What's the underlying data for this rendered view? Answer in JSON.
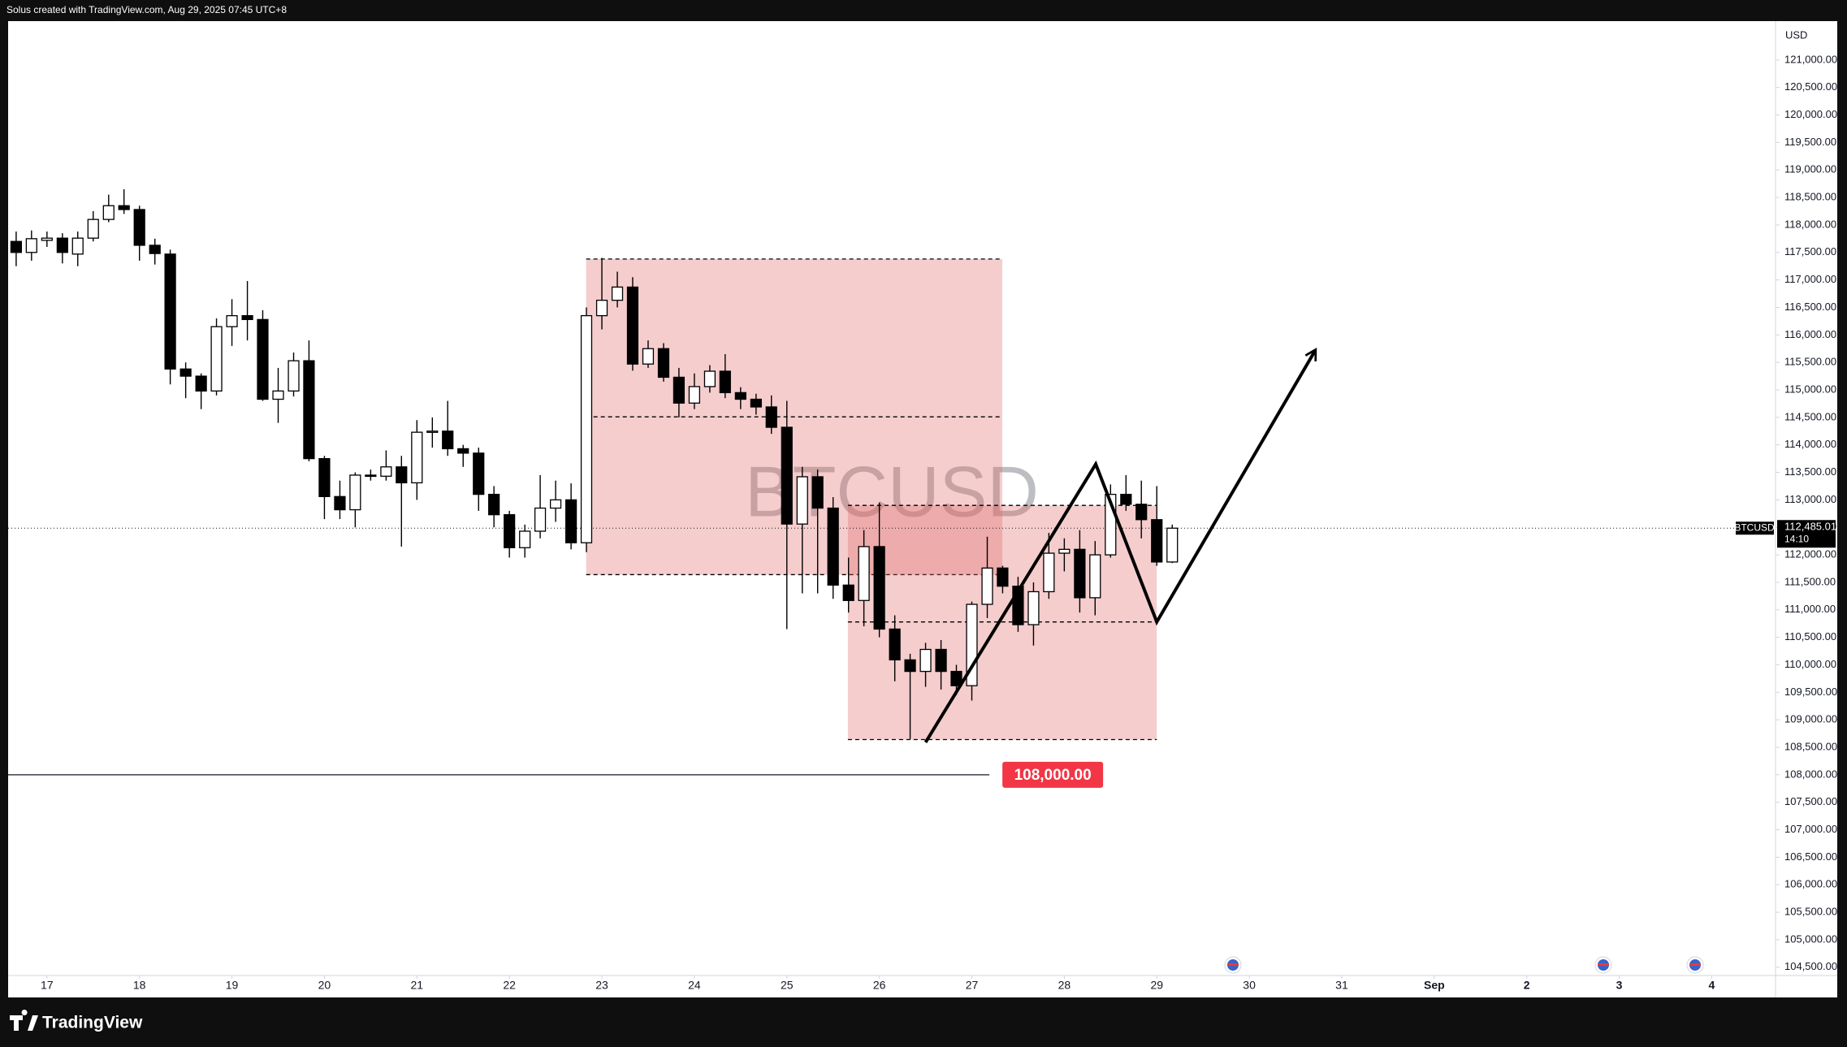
{
  "header": "Solus created with TradingView.com, Aug 29, 2025 07:45 UTC+8",
  "brand": "TradingView",
  "chart_data": {
    "type": "candlestick",
    "symbol": "BTCUSD",
    "currency": "USD",
    "colors": {
      "up": "#ffffff",
      "down": "#000000",
      "border": "#000000"
    },
    "x": [
      16.667,
      16.833,
      17,
      17.167,
      17.333,
      17.5,
      17.667,
      17.833,
      18,
      18.167,
      18.333,
      18.5,
      18.667,
      18.833,
      19,
      19.167,
      19.333,
      19.5,
      19.667,
      19.833,
      20,
      20.167,
      20.333,
      20.5,
      20.667,
      20.833,
      21,
      21.167,
      21.333,
      21.5,
      21.667,
      21.833,
      22,
      22.167,
      22.333,
      22.5,
      22.667,
      22.833,
      23,
      23.167,
      23.333,
      23.5,
      23.667,
      23.833,
      24,
      24.167,
      24.333,
      24.5,
      24.667,
      24.833,
      25,
      25.167,
      25.333,
      25.5,
      25.667,
      25.833,
      26,
      26.167,
      26.333,
      26.5,
      26.667,
      26.833,
      27,
      27.167,
      27.333,
      27.5,
      27.667,
      27.833,
      28,
      28.167,
      28.333,
      28.5,
      28.667,
      28.833,
      29,
      29.167
    ],
    "open": [
      117700,
      117500,
      117720,
      117760,
      117470,
      117760,
      118100,
      118350,
      118280,
      117630,
      117470,
      115380,
      115250,
      114980,
      116150,
      116350,
      116280,
      114830,
      114980,
      115530,
      113750,
      113060,
      112820,
      113450,
      113430,
      113600,
      113310,
      114230,
      114250,
      113930,
      113850,
      113100,
      112730,
      112130,
      112430,
      112850,
      113000,
      112220,
      116350,
      116630,
      116870,
      115470,
      115750,
      115230,
      114760,
      115060,
      115340,
      114950,
      114830,
      114690,
      114320,
      112560,
      113420,
      112850,
      111450,
      111170,
      112150,
      110650,
      110090,
      109880,
      110280,
      109880,
      109620,
      111100,
      111760,
      111430,
      110730,
      111330,
      112030,
      112100,
      111220,
      112000,
      113100,
      112920,
      112640,
      111870
    ],
    "high": [
      117880,
      117900,
      117880,
      117850,
      117880,
      118250,
      118550,
      118650,
      118350,
      117750,
      117550,
      115500,
      115300,
      116300,
      116650,
      116980,
      116450,
      115400,
      115680,
      115900,
      113800,
      113350,
      113500,
      113550,
      113900,
      113800,
      114450,
      114500,
      114800,
      114000,
      113950,
      113250,
      112800,
      112550,
      113450,
      113350,
      113300,
      116500,
      117400,
      117150,
      117050,
      115900,
      115850,
      115400,
      115300,
      115450,
      115650,
      115050,
      114930,
      114900,
      114800,
      113600,
      113550,
      113050,
      111950,
      112450,
      112950,
      110900,
      110200,
      110400,
      110450,
      110000,
      111150,
      112330,
      111800,
      111600,
      111500,
      112400,
      112300,
      112450,
      112250,
      113280,
      113450,
      113350,
      113250,
      112550
    ],
    "low": [
      117250,
      117350,
      117600,
      117300,
      117250,
      117700,
      118050,
      118200,
      117350,
      117280,
      115100,
      114850,
      114650,
      114900,
      115800,
      115900,
      114800,
      114400,
      114880,
      113700,
      112650,
      112650,
      112500,
      113350,
      113350,
      112150,
      113000,
      113950,
      113800,
      113600,
      112800,
      112500,
      111950,
      111950,
      112300,
      112600,
      112100,
      112050,
      116100,
      116500,
      115350,
      115400,
      115150,
      114500,
      114650,
      114950,
      114850,
      114650,
      114550,
      114200,
      110650,
      111300,
      111300,
      111200,
      110950,
      110700,
      110500,
      109700,
      108650,
      109600,
      109550,
      109450,
      109350,
      110850,
      111300,
      110600,
      110350,
      111200,
      111700,
      110950,
      110900,
      111950,
      112800,
      112300,
      111800,
      111850
    ],
    "close": [
      117500,
      117750,
      117760,
      117500,
      117760,
      118100,
      118350,
      118280,
      117630,
      117480,
      115380,
      115250,
      114980,
      116150,
      116350,
      116280,
      114830,
      114980,
      115530,
      113750,
      113060,
      112820,
      113450,
      113430,
      113600,
      113310,
      114230,
      114250,
      113930,
      113850,
      113100,
      112730,
      112130,
      112430,
      112850,
      113000,
      112220,
      116350,
      116630,
      116870,
      115470,
      115750,
      115230,
      114760,
      115060,
      115340,
      114950,
      114830,
      114690,
      114320,
      112560,
      113420,
      112850,
      111450,
      111170,
      112150,
      110650,
      110090,
      109880,
      110280,
      109880,
      109620,
      111100,
      111760,
      111430,
      110730,
      111330,
      112030,
      112100,
      111220,
      112000,
      113100,
      112920,
      112640,
      111870,
      112485.01
    ],
    "xlim": [
      16.58,
      35.69
    ],
    "xticks": [
      17,
      18,
      19,
      20,
      21,
      22,
      23,
      24,
      25,
      26,
      27,
      28,
      29,
      30,
      31,
      {
        "value": 32,
        "label": "Sep"
      },
      {
        "value": 33,
        "label": "2"
      },
      {
        "value": 34,
        "label": "3"
      },
      {
        "value": 35,
        "label": "4"
      }
    ],
    "ylim": [
      104349,
      121707
    ],
    "yticks": [
      {
        "value": 104500,
        "label": "104,500.00"
      },
      {
        "value": 105000,
        "label": "105,000.00"
      },
      {
        "value": 105500,
        "label": "105,500.00"
      },
      {
        "value": 106000,
        "label": "106,000.00"
      },
      {
        "value": 106500,
        "label": "106,500.00"
      },
      {
        "value": 107000,
        "label": "107,000.00"
      },
      {
        "value": 107500,
        "label": "107,500.00"
      },
      {
        "value": 108000,
        "label": "108,000.00"
      },
      {
        "value": 108500,
        "label": "108,500.00"
      },
      {
        "value": 109000,
        "label": "109,000.00"
      },
      {
        "value": 109500,
        "label": "109,500.00"
      },
      {
        "value": 110000,
        "label": "110,000.00"
      },
      {
        "value": 110500,
        "label": "110,500.00"
      },
      {
        "value": 111000,
        "label": "111,000.00"
      },
      {
        "value": 111500,
        "label": "111,500.00"
      },
      {
        "value": 112000,
        "label": "112,000.00"
      },
      {
        "value": 112500,
        "label": "112,500.00"
      },
      {
        "value": 113000,
        "label": "113,000.00"
      },
      {
        "value": 113500,
        "label": "113,500.00"
      },
      {
        "value": 114000,
        "label": "114,000.00"
      },
      {
        "value": 114500,
        "label": "114,500.00"
      },
      {
        "value": 115000,
        "label": "115,000.00"
      },
      {
        "value": 115500,
        "label": "115,500.00"
      },
      {
        "value": 116000,
        "label": "116,000.00"
      },
      {
        "value": 116500,
        "label": "116,500.00"
      },
      {
        "value": 117000,
        "label": "117,000.00"
      },
      {
        "value": 117500,
        "label": "117,500.00"
      },
      {
        "value": 118000,
        "label": "118,000.00"
      },
      {
        "value": 118500,
        "label": "118,500.00"
      },
      {
        "value": 119000,
        "label": "119,000.00"
      },
      {
        "value": 119500,
        "label": "119,500.00"
      },
      {
        "value": 120000,
        "label": "120,000.00"
      },
      {
        "value": 120500,
        "label": "120,500.00"
      },
      {
        "value": 121000,
        "label": "121,000.00"
      }
    ],
    "grid": false,
    "last_price": {
      "value": 112485.01,
      "label": "112,485.01"
    },
    "countdown": "14:10",
    "hline": {
      "value": 108000,
      "label": "108,000.00",
      "end": 27.19,
      "color": "#f23645"
    },
    "zone_color": "#e06666",
    "zones": [
      {
        "x": [
          22.83,
          27.33
        ],
        "levels": [
          117380,
          114510,
          111640
        ]
      },
      {
        "x": [
          25.66,
          29.0
        ],
        "levels": [
          112900,
          110780,
          108640
        ]
      }
    ],
    "path": {
      "x": [
        26.5,
        28.34,
        29.0,
        30.71
      ],
      "y": [
        108590,
        113650,
        110780,
        115710
      ]
    }
  }
}
